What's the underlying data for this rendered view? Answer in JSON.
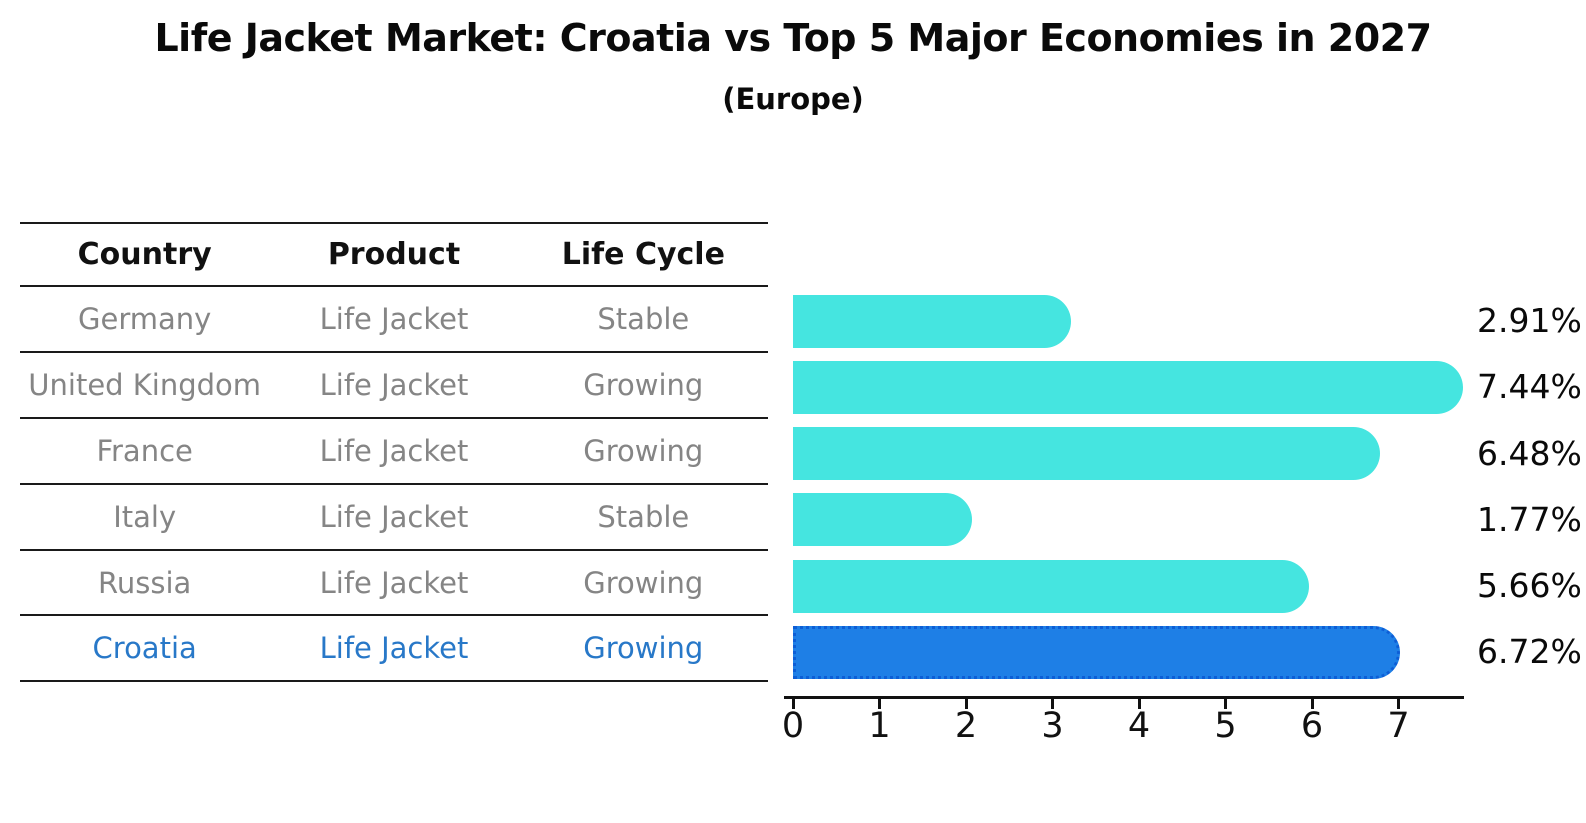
{
  "title": "Life Jacket Market: Croatia vs Top 5 Major Economies in 2027",
  "subtitle": "(Europe)",
  "table": {
    "headers": [
      "Country",
      "Product",
      "Life Cycle"
    ],
    "header_color": "#111111",
    "row_text_color": "#858585",
    "highlight_text_color": "#2878C8",
    "rows": [
      {
        "country": "Germany",
        "product": "Life Jacket",
        "life_cycle": "Stable",
        "highlight": false
      },
      {
        "country": "United Kingdom",
        "product": "Life Jacket",
        "life_cycle": "Growing",
        "highlight": false
      },
      {
        "country": "France",
        "product": "Life Jacket",
        "life_cycle": "Growing",
        "highlight": false
      },
      {
        "country": "Italy",
        "product": "Life Jacket",
        "life_cycle": "Stable",
        "highlight": false
      },
      {
        "country": "Russia",
        "product": "Life Jacket",
        "life_cycle": "Growing",
        "highlight": false
      },
      {
        "country": "Croatia",
        "product": "Life Jacket",
        "life_cycle": "Growing",
        "highlight": true
      }
    ]
  },
  "chart_data": {
    "type": "bar",
    "orientation": "horizontal",
    "title": "Life Jacket Market: Croatia vs Top 5 Major Economies in 2027",
    "subtitle": "(Europe)",
    "categories": [
      "Germany",
      "United Kingdom",
      "France",
      "Italy",
      "Russia",
      "Croatia"
    ],
    "values": [
      2.91,
      7.44,
      6.48,
      1.77,
      5.66,
      6.72
    ],
    "value_labels": [
      "2.91%",
      "7.44%",
      "6.48%",
      "1.77%",
      "5.66%",
      "6.72%"
    ],
    "xlabel": "",
    "ylabel": "",
    "xlim": [
      0,
      7.8
    ],
    "xticks": [
      0,
      1,
      2,
      3,
      4,
      5,
      6,
      7
    ],
    "grid": false,
    "legend": "none",
    "bar_color": "#45E5E0",
    "highlight_index": 5,
    "highlight_color": "#1E7FE6",
    "highlight_border_color": "#0D5ED6",
    "label_color": "#0a0a0a"
  }
}
